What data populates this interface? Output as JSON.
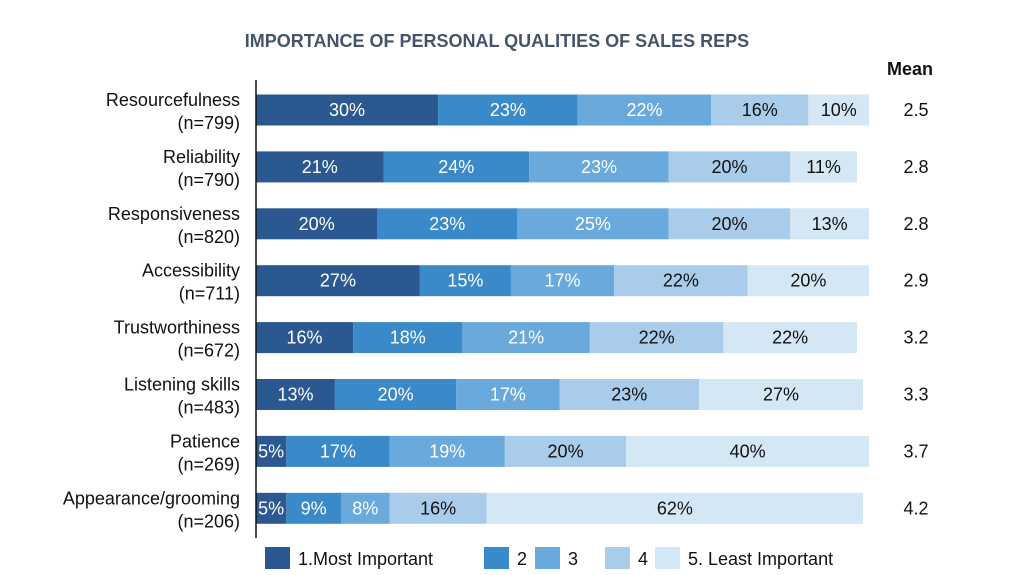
{
  "chart_data": {
    "type": "bar",
    "orientation": "horizontal",
    "stacked": "percent",
    "title": "IMPORTANCE OF PERSONAL QUALITIES OF SALES REPS",
    "xlabel": "",
    "ylabel": "",
    "xlim": [
      0,
      100
    ],
    "grid": false,
    "categories": [
      {
        "name": "Resourcefulness",
        "n": "(n=799)"
      },
      {
        "name": "Reliability",
        "n": "(n=790)"
      },
      {
        "name": "Responsiveness",
        "n": "(n=820)"
      },
      {
        "name": "Accessibility",
        "n": "(n=711)"
      },
      {
        "name": "Trustworthiness",
        "n": "(n=672)"
      },
      {
        "name": "Listening skills",
        "n": "(n=483)"
      },
      {
        "name": "Patience",
        "n": "(n=269)"
      },
      {
        "name": "Appearance/grooming",
        "n": "(n=206)"
      }
    ],
    "series": [
      {
        "name": "1.Most Important",
        "color": "#2b5891",
        "label_color": "#ffffff",
        "values": [
          30,
          21,
          20,
          27,
          16,
          13,
          5,
          5
        ]
      },
      {
        "name": "2",
        "color": "#3a89c9",
        "label_color": "#ffffff",
        "values": [
          23,
          24,
          23,
          15,
          18,
          20,
          17,
          9
        ]
      },
      {
        "name": "3",
        "color": "#6aa9db",
        "label_color": "#ffffff",
        "values": [
          22,
          23,
          25,
          17,
          21,
          17,
          19,
          8
        ]
      },
      {
        "name": "4",
        "color": "#a9cceb",
        "label_color": "#111111",
        "values": [
          16,
          20,
          20,
          22,
          22,
          23,
          20,
          16
        ]
      },
      {
        "name": "5. Least Important",
        "color": "#d3e7f4",
        "label_color": "#111111",
        "values": [
          10,
          11,
          13,
          20,
          22,
          27,
          40,
          62
        ]
      }
    ],
    "mean": {
      "header": "Mean",
      "values": [
        "2.5",
        "2.8",
        "2.8",
        "2.9",
        "3.2",
        "3.3",
        "3.7",
        "4.2"
      ]
    },
    "legend": {
      "placement": "bottom"
    }
  }
}
